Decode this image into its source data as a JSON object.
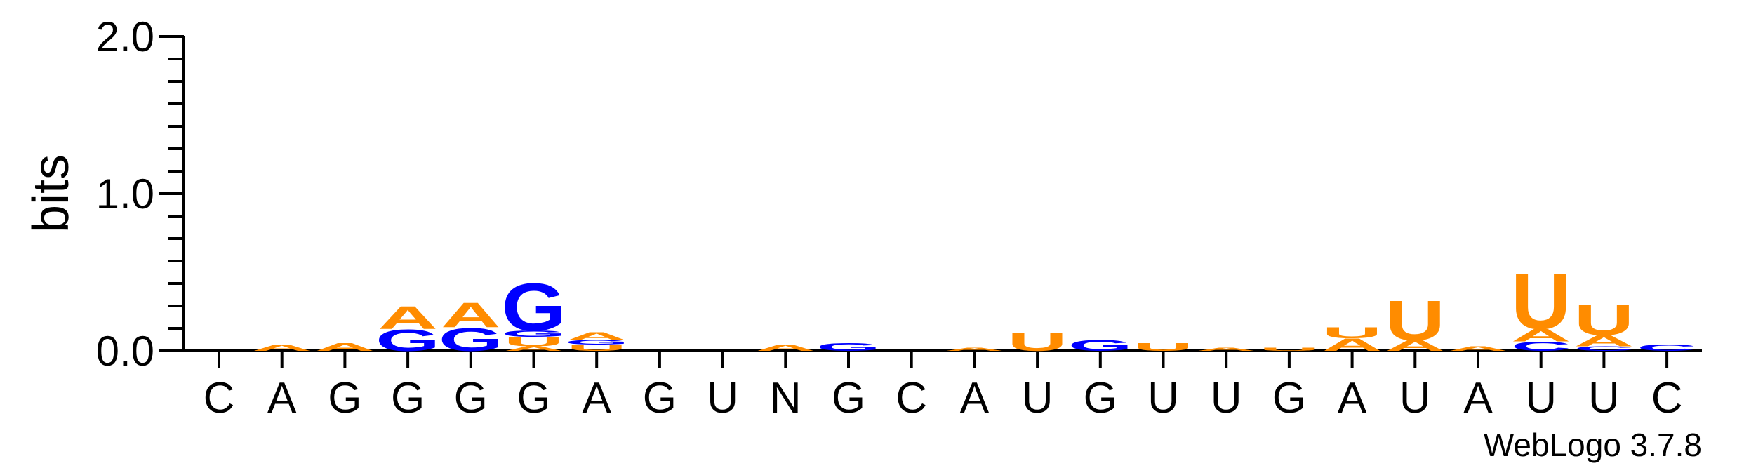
{
  "chart_data": {
    "type": "sequence-logo",
    "ylabel": "bits",
    "ylim": [
      0,
      2.0
    ],
    "yticks": [
      "0.0",
      "1.0",
      "2.0"
    ],
    "colors": {
      "A": "#ff8c00",
      "U": "#ff8c00",
      "G": "#0000ff",
      "C": "#0000ff"
    },
    "credit": "WebLogo 3.7.8",
    "positions": [
      {
        "label": "C",
        "stack": []
      },
      {
        "label": "A",
        "stack": [
          {
            "base": "A",
            "bits": 0.04
          }
        ]
      },
      {
        "label": "G",
        "stack": [
          {
            "base": "A",
            "bits": 0.05
          }
        ]
      },
      {
        "label": "G",
        "stack": [
          {
            "base": "G",
            "bits": 0.14
          },
          {
            "base": "A",
            "bits": 0.15
          }
        ]
      },
      {
        "label": "G",
        "stack": [
          {
            "base": "G",
            "bits": 0.15
          },
          {
            "base": "A",
            "bits": 0.16
          }
        ]
      },
      {
        "label": "G",
        "stack": [
          {
            "base": "A",
            "bits": 0.03
          },
          {
            "base": "U",
            "bits": 0.06
          },
          {
            "base": "G",
            "bits": 0.04
          },
          {
            "base": "G",
            "bits": 0.31
          }
        ]
      },
      {
        "label": "A",
        "stack": [
          {
            "base": "U",
            "bits": 0.04
          },
          {
            "base": "G",
            "bits": 0.03
          },
          {
            "base": "A",
            "bits": 0.05
          }
        ]
      },
      {
        "label": "G",
        "stack": []
      },
      {
        "label": "U",
        "stack": []
      },
      {
        "label": "N",
        "stack": [
          {
            "base": "A",
            "bits": 0.04
          }
        ]
      },
      {
        "label": "G",
        "stack": [
          {
            "base": "G",
            "bits": 0.05
          }
        ]
      },
      {
        "label": "C",
        "stack": []
      },
      {
        "label": "A",
        "stack": [
          {
            "base": "A",
            "bits": 0.02
          }
        ]
      },
      {
        "label": "U",
        "stack": [
          {
            "base": "U",
            "bits": 0.12
          }
        ]
      },
      {
        "label": "G",
        "stack": [
          {
            "base": "G",
            "bits": 0.07
          }
        ]
      },
      {
        "label": "U",
        "stack": [
          {
            "base": "U",
            "bits": 0.05
          }
        ]
      },
      {
        "label": "U",
        "stack": [
          {
            "base": "A",
            "bits": 0.02
          }
        ]
      },
      {
        "label": "G",
        "stack": [
          {
            "base": "U",
            "bits": 0.02
          }
        ]
      },
      {
        "label": "A",
        "stack": [
          {
            "base": "A",
            "bits": 0.08
          },
          {
            "base": "U",
            "bits": 0.07
          }
        ]
      },
      {
        "label": "U",
        "stack": [
          {
            "base": "A",
            "bits": 0.07
          },
          {
            "base": "U",
            "bits": 0.26
          }
        ]
      },
      {
        "label": "A",
        "stack": [
          {
            "base": "A",
            "bits": 0.03
          }
        ]
      },
      {
        "label": "U",
        "stack": [
          {
            "base": "C",
            "bits": 0.06
          },
          {
            "base": "A",
            "bits": 0.08
          },
          {
            "base": "U",
            "bits": 0.36
          }
        ]
      },
      {
        "label": "U",
        "stack": [
          {
            "base": "C",
            "bits": 0.03
          },
          {
            "base": "A",
            "bits": 0.07
          },
          {
            "base": "U",
            "bits": 0.2
          }
        ]
      },
      {
        "label": "C",
        "stack": [
          {
            "base": "C",
            "bits": 0.04
          }
        ]
      }
    ]
  }
}
